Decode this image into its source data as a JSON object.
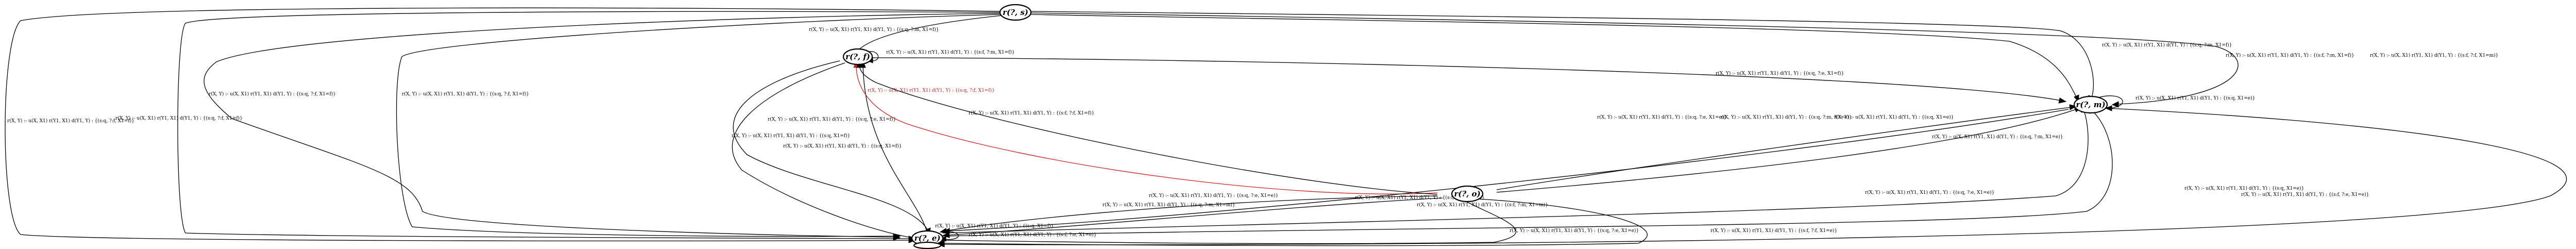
{
  "nodes": {
    "s0": "r(?, s)",
    "f": "r(?, f)",
    "m": "r(?, m)",
    "e": "r(?, e)",
    "o": "r(?, o)",
    "q": "r(?, ?)"
  },
  "edges": {
    "e01": "r(X, Y) :- u(X, X1) r(Y1, X1) d(Y1, Y) : {(s:q, ?:f, X1=f)}",
    "e02": "r(X, Y) :- u(X, X1) r(Y1, X1) d(Y1, Y) : {(s:q, ?:f, X1=f)}",
    "e03": "r(X, Y) :- u(X, X1) r(Y1, X1) d(Y1, Y) : {(s:q, ?:f, X1=f)}",
    "e04": "r(X, Y) :- u(X, X1) r(Y1, X1) d(Y1, Y) : {(s:q, ?:f, X1=f)}",
    "e05": "r(X, Y) :- u(X, X1) r(Y1, X1) d(Y1, Y) : {(s:q, ?:m, X1=f)}",
    "e06": "r(X, Y) :- u(X, X1) r(Y1, X1) d(Y1, Y) : {(s:q, ?:m, X1=f)}",
    "e07": "r(X, Y) :- u(X, X1) r(Y1, X1) d(Y1, Y) : {(s:f, ?:m, X1=f)}",
    "e08": "r(X, Y) :- u(X, X1) r(Y1, X1) d(Y1, Y) : {(s:f, ?:m, X1=f)}",
    "e09": "r(X, Y) :- u(X, X1) r(Y1, X1) d(Y1, Y) : {(s:q, ?:e, X1=f)}",
    "e10": "r(X, Y) :- u(X, X1) r(Y1, X1) d(Y1, Y) : {(s:q, ?:e, X1=f)}",
    "e11": "r(X, Y) :- u(X, X1) r(Y1, X1) d(Y1, Y) : {(s:q, X1=f)}",
    "e12": "r(X, Y) :- u(X, X1) r(Y1, X1) d(Y1, Y) : {(s:q, X1=f)}",
    "e13": "r(X, Y) :- u(X, X1) r(Y1, X1) d(Y1, Y) : {(s:q, ?:f, X1=f)}",
    "e14": "r(X, Y) :- u(X, X1) r(Y1, X1) d(Y1, Y) : {(s:f, ?:f, X1=f)}",
    "e15": "r(X, Y) :- u(X, X1) r(Y1, X1) d(Y1, Y) : {(s:q, ?:m, X1=e)}",
    "e16": "r(X, Y) :- u(X, X1) r(Y1, X1) d(Y1, Y) : {(s:q, X1=e)}",
    "e17": "r(X, Y) :- u(X, X1) r(Y1, X1) d(Y1, Y) : {(s:q, ?:e, X1=e)}",
    "e18": "r(X, Y) :- u(X, X1) r(Y1, X1) d(Y1, Y) : {(s:f, ?:m, X1=e)}",
    "e19": "r(X, Y) :- u(X, X1) r(Y1, X1) d(Y1, Y) : {(s:q, ?:e, X1=e)}",
    "e20": "r(X, Y) :- u(X, X1) r(Y1, X1) d(Y1, Y) : {(s:f, ?:f, X1=e)}",
    "e21": "r(X, Y) :- u(X, X1) r(Y1, X1) d(Y1, Y) : {(s:q, ?:e, X1=e)}",
    "e22": "r(X, Y) :- u(X, X1) r(Y1, X1) d(Y1, Y) : {(s:q, X1=f)}",
    "e23": "r(X, Y) :- u(X, X1) r(Y1, X1) d(Y1, Y) : {(s:f, ?:e, X1=e)}",
    "e24": "r(X, Y) :- u(X, X1) r(Y1, X1) d(Y1, Y) : {(s:q, ?:m, X1=e)}",
    "e25": "r(X, Y) :- u(X, X1) r(Y1, X1) d(Y1, Y) : {(s:f, ?:e, X1=e)}",
    "e26": "r(X, Y) :- u(X, X1) r(Y1, X1) d(Y1, Y) : {(s:q, X1=e)}",
    "e27": "r(X, Y) :- u(X, X1) r(Y1, X1) d(Y1, Y) : {(s:q, X1=e)}",
    "e28": "r(X, Y) :- u(X, X1) r(Y1, X1) d(Y1, Y) : {(s:q, ?:e, X1=e)}",
    "e29": "r(X, Y) :- u(X, X1) r(Y1, X1) d(Y1, Y) : {(s:f, ?:m, X1=m)}",
    "e30": "r(X, Y) :- u(X, X1) r(Y1, X1) d(Y1, Y) : {(s:q, ?:m, X1=m)}",
    "e31": "r(X, Y) :- u(X, X1) r(Y1, X1) d(Y1, Y) : {(s:f, ?:f, X1=m)}"
  }
}
